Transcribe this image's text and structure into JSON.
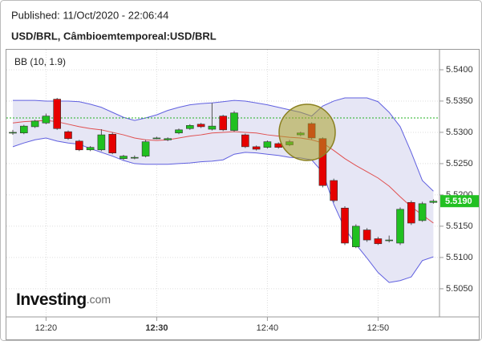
{
  "chart_data": {
    "type": "candlestick",
    "published": "Published: 11/Oct/2020 - 22:06:44",
    "title": "USD/BRL, Câmbioemtemporeal:USD/BRL",
    "indicator_label": "BB (10, 1.9)",
    "logo": "Investing",
    "logo_suffix": ".com",
    "categories": [
      null,
      null,
      null,
      "12:20",
      null,
      null,
      null,
      null,
      null,
      null,
      null,
      null,
      null,
      "12:30",
      null,
      null,
      null,
      null,
      null,
      null,
      null,
      null,
      null,
      "12:40",
      null,
      null,
      null,
      null,
      null,
      null,
      null,
      null,
      null,
      "12:50",
      null,
      null,
      null,
      null,
      null
    ],
    "open": [
      5.53,
      5.5299,
      5.5309,
      5.5315,
      5.5353,
      5.5301,
      5.5286,
      5.5272,
      5.5272,
      5.5297,
      5.5258,
      5.526,
      5.5262,
      5.5291,
      5.5288,
      5.5299,
      5.5306,
      5.5313,
      5.5305,
      5.5326,
      5.5303,
      5.5296,
      5.5277,
      5.5276,
      5.5282,
      5.528,
      5.5296,
      5.5314,
      5.529,
      5.5223,
      5.5179,
      5.5117,
      5.5144,
      5.513,
      5.5127,
      5.5123,
      5.5188,
      5.5159,
      5.5188
    ],
    "high": [
      5.5304,
      5.5312,
      5.532,
      5.533,
      5.5355,
      5.5303,
      5.5288,
      5.5278,
      5.5305,
      5.53,
      5.5264,
      5.5263,
      5.5288,
      5.5293,
      5.5292,
      5.5306,
      5.5313,
      5.5315,
      5.5347,
      5.5328,
      5.5334,
      5.5298,
      5.5279,
      5.5287,
      5.5284,
      5.5288,
      5.5301,
      5.5316,
      5.5292,
      5.5226,
      5.5182,
      5.5153,
      5.5147,
      5.5133,
      5.5135,
      5.518,
      5.5191,
      5.5189,
      5.5193
    ],
    "low": [
      5.5296,
      5.5297,
      5.5307,
      5.5313,
      5.5304,
      5.5288,
      5.527,
      5.527,
      5.527,
      5.5265,
      5.5256,
      5.5257,
      5.526,
      5.5289,
      5.5286,
      5.5297,
      5.5304,
      5.5307,
      5.5303,
      5.5302,
      5.5301,
      5.5275,
      5.5271,
      5.5274,
      5.5274,
      5.5278,
      5.5294,
      5.5289,
      5.5212,
      5.5188,
      5.512,
      5.5115,
      5.5125,
      5.512,
      5.5124,
      5.512,
      5.5152,
      5.5157,
      5.5186
    ],
    "close": [
      5.53,
      5.531,
      5.5318,
      5.5326,
      5.5306,
      5.529,
      5.5272,
      5.5276,
      5.5296,
      5.5267,
      5.5262,
      5.526,
      5.5285,
      5.5291,
      5.529,
      5.5304,
      5.5311,
      5.5309,
      5.531,
      5.5304,
      5.5331,
      5.5277,
      5.5273,
      5.5285,
      5.5276,
      5.5285,
      5.5299,
      5.5291,
      5.5215,
      5.5191,
      5.5123,
      5.515,
      5.5128,
      5.5122,
      5.5128,
      5.5177,
      5.5155,
      5.5186,
      5.519
    ],
    "up_color": "#20c020",
    "down_color": "#e60000",
    "bollinger": {
      "upper": [
        5.5351,
        5.5351,
        5.5351,
        5.535,
        5.535,
        5.535,
        5.5349,
        5.5345,
        5.534,
        5.5332,
        5.5324,
        5.5319,
        5.5323,
        5.5328,
        5.5335,
        5.534,
        5.5344,
        5.5346,
        5.5347,
        5.5349,
        5.5351,
        5.535,
        5.5347,
        5.5344,
        5.534,
        5.5336,
        5.5332,
        5.5326,
        5.5342,
        5.535,
        5.5355,
        5.5355,
        5.5355,
        5.5349,
        5.5332,
        5.5309,
        5.5268,
        5.5223,
        5.5206
      ],
      "middle": [
        5.5315,
        5.5317,
        5.5318,
        5.5319,
        5.5317,
        5.5313,
        5.5309,
        5.5306,
        5.5304,
        5.53,
        5.5296,
        5.5291,
        5.5288,
        5.5287,
        5.5288,
        5.5291,
        5.5294,
        5.5296,
        5.5299,
        5.53,
        5.5301,
        5.53,
        5.5299,
        5.5296,
        5.5294,
        5.5292,
        5.5291,
        5.5288,
        5.5283,
        5.5271,
        5.5258,
        5.5247,
        5.5237,
        5.5227,
        5.5214,
        5.5197,
        5.5181,
        5.5168,
        5.5155
      ],
      "lower": [
        5.5277,
        5.5283,
        5.5288,
        5.5291,
        5.5286,
        5.5283,
        5.5281,
        5.5274,
        5.5268,
        5.5262,
        5.5255,
        5.525,
        5.5249,
        5.5249,
        5.5249,
        5.525,
        5.5251,
        5.5253,
        5.5254,
        5.5256,
        5.5265,
        5.5268,
        5.5267,
        5.5265,
        5.5263,
        5.526,
        5.5259,
        5.5256,
        5.5236,
        5.5185,
        5.5146,
        5.5121,
        5.5099,
        5.5076,
        5.506,
        5.5063,
        5.5069,
        5.5095,
        5.5101
      ],
      "band_color": "#6060e0",
      "fill_color": "#e6e6f5",
      "middle_color": "#e05050"
    },
    "reference_line": {
      "value": 5.5323,
      "color": "#20b020"
    },
    "last_price": {
      "value": 5.519,
      "label": "5.5190",
      "color": "#22c022"
    },
    "ylim": [
      5.5005,
      5.5432
    ],
    "yticks": [
      {
        "value": 5.505,
        "label": "5.5050"
      },
      {
        "value": 5.51,
        "label": "5.5100"
      },
      {
        "value": 5.515,
        "label": "5.5150"
      },
      {
        "value": 5.52,
        "label": "5.5200"
      },
      {
        "value": 5.525,
        "label": "5.5250"
      },
      {
        "value": 5.53,
        "label": "5.5300"
      },
      {
        "value": 5.535,
        "label": "5.5350"
      },
      {
        "value": 5.54,
        "label": "5.5400"
      }
    ],
    "grid": true
  }
}
